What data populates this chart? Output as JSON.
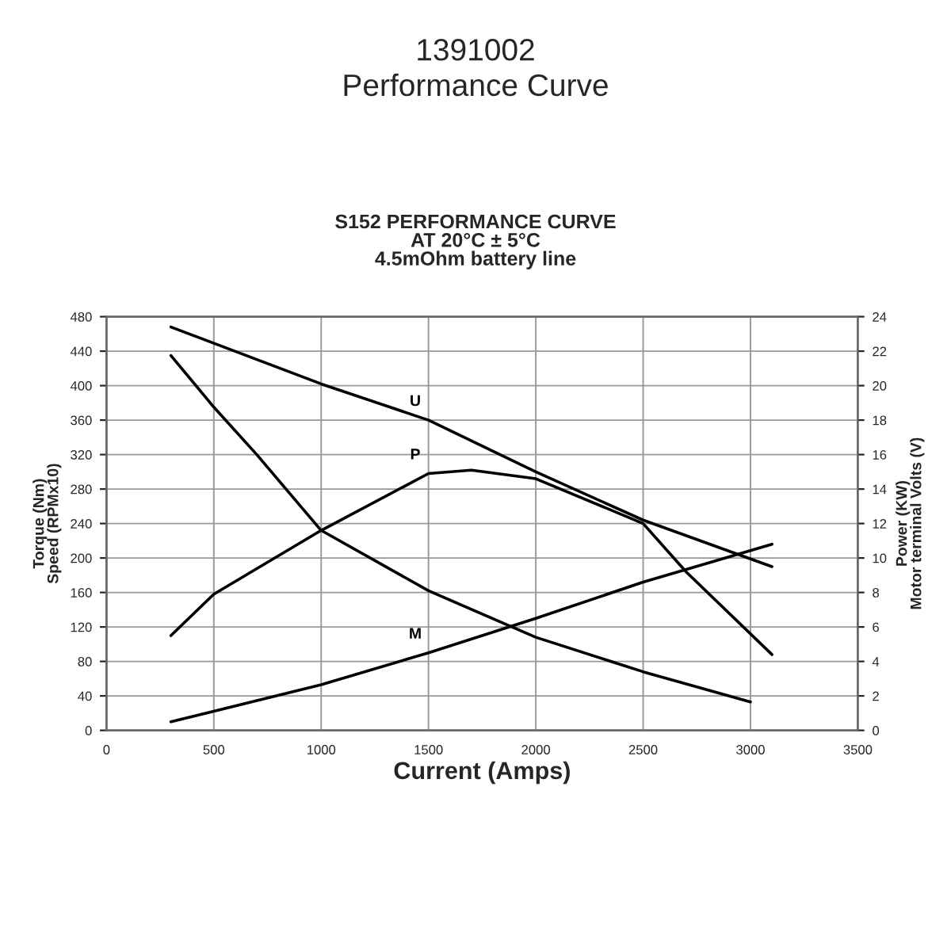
{
  "chart_data": {
    "type": "line",
    "title": "1391002\nPerformance Curve",
    "subtitle": "S152 PERFORMANCE CURVE\nAT 20°C ± 5°C\n4.5mOhm battery line",
    "xlabel": "Current (Amps)",
    "ylabel": "Torque (Nm)\nSpeed (RPMx10)",
    "y2label": "Power (KW)\nMotor terminal Volts (V)",
    "xlim": [
      0,
      3500
    ],
    "xticks": [
      0,
      500,
      1000,
      1500,
      2000,
      2500,
      3000,
      3500
    ],
    "ylim": [
      0,
      480
    ],
    "yticks": [
      0,
      40,
      80,
      120,
      160,
      200,
      240,
      280,
      320,
      360,
      400,
      440,
      480
    ],
    "y2lim": [
      0,
      24
    ],
    "y2ticks": [
      0,
      2,
      4,
      6,
      8,
      10,
      12,
      14,
      16,
      18,
      20,
      22,
      24
    ],
    "grid": true,
    "marker": "none",
    "line_style": "solid",
    "series": [
      {
        "name": "U",
        "color": "#000000",
        "axis": "y2",
        "x": [
          300,
          1000,
          1500,
          2000,
          2500,
          3100
        ],
        "values": [
          23.4,
          20.1,
          18.0,
          15.0,
          12.2,
          9.5
        ]
      },
      {
        "name": "P",
        "color": "#000000",
        "axis": "y2",
        "x": [
          300,
          500,
          1000,
          1500,
          1700,
          2000,
          2500,
          2700,
          3100
        ],
        "values": [
          5.5,
          7.9,
          11.6,
          14.9,
          15.1,
          14.6,
          12.0,
          9.2,
          4.4
        ]
      },
      {
        "name": "M",
        "color": "#000000",
        "x": [
          300,
          1000,
          1500,
          2000,
          2500,
          3100
        ],
        "values": [
          10,
          53,
          90,
          130,
          172,
          216
        ]
      },
      {
        "color": "#000000",
        "x": [
          300,
          500,
          700,
          1000,
          1500,
          2000,
          2500,
          3000
        ],
        "values": [
          435,
          375,
          320,
          232,
          162,
          108,
          68,
          33
        ]
      }
    ]
  }
}
